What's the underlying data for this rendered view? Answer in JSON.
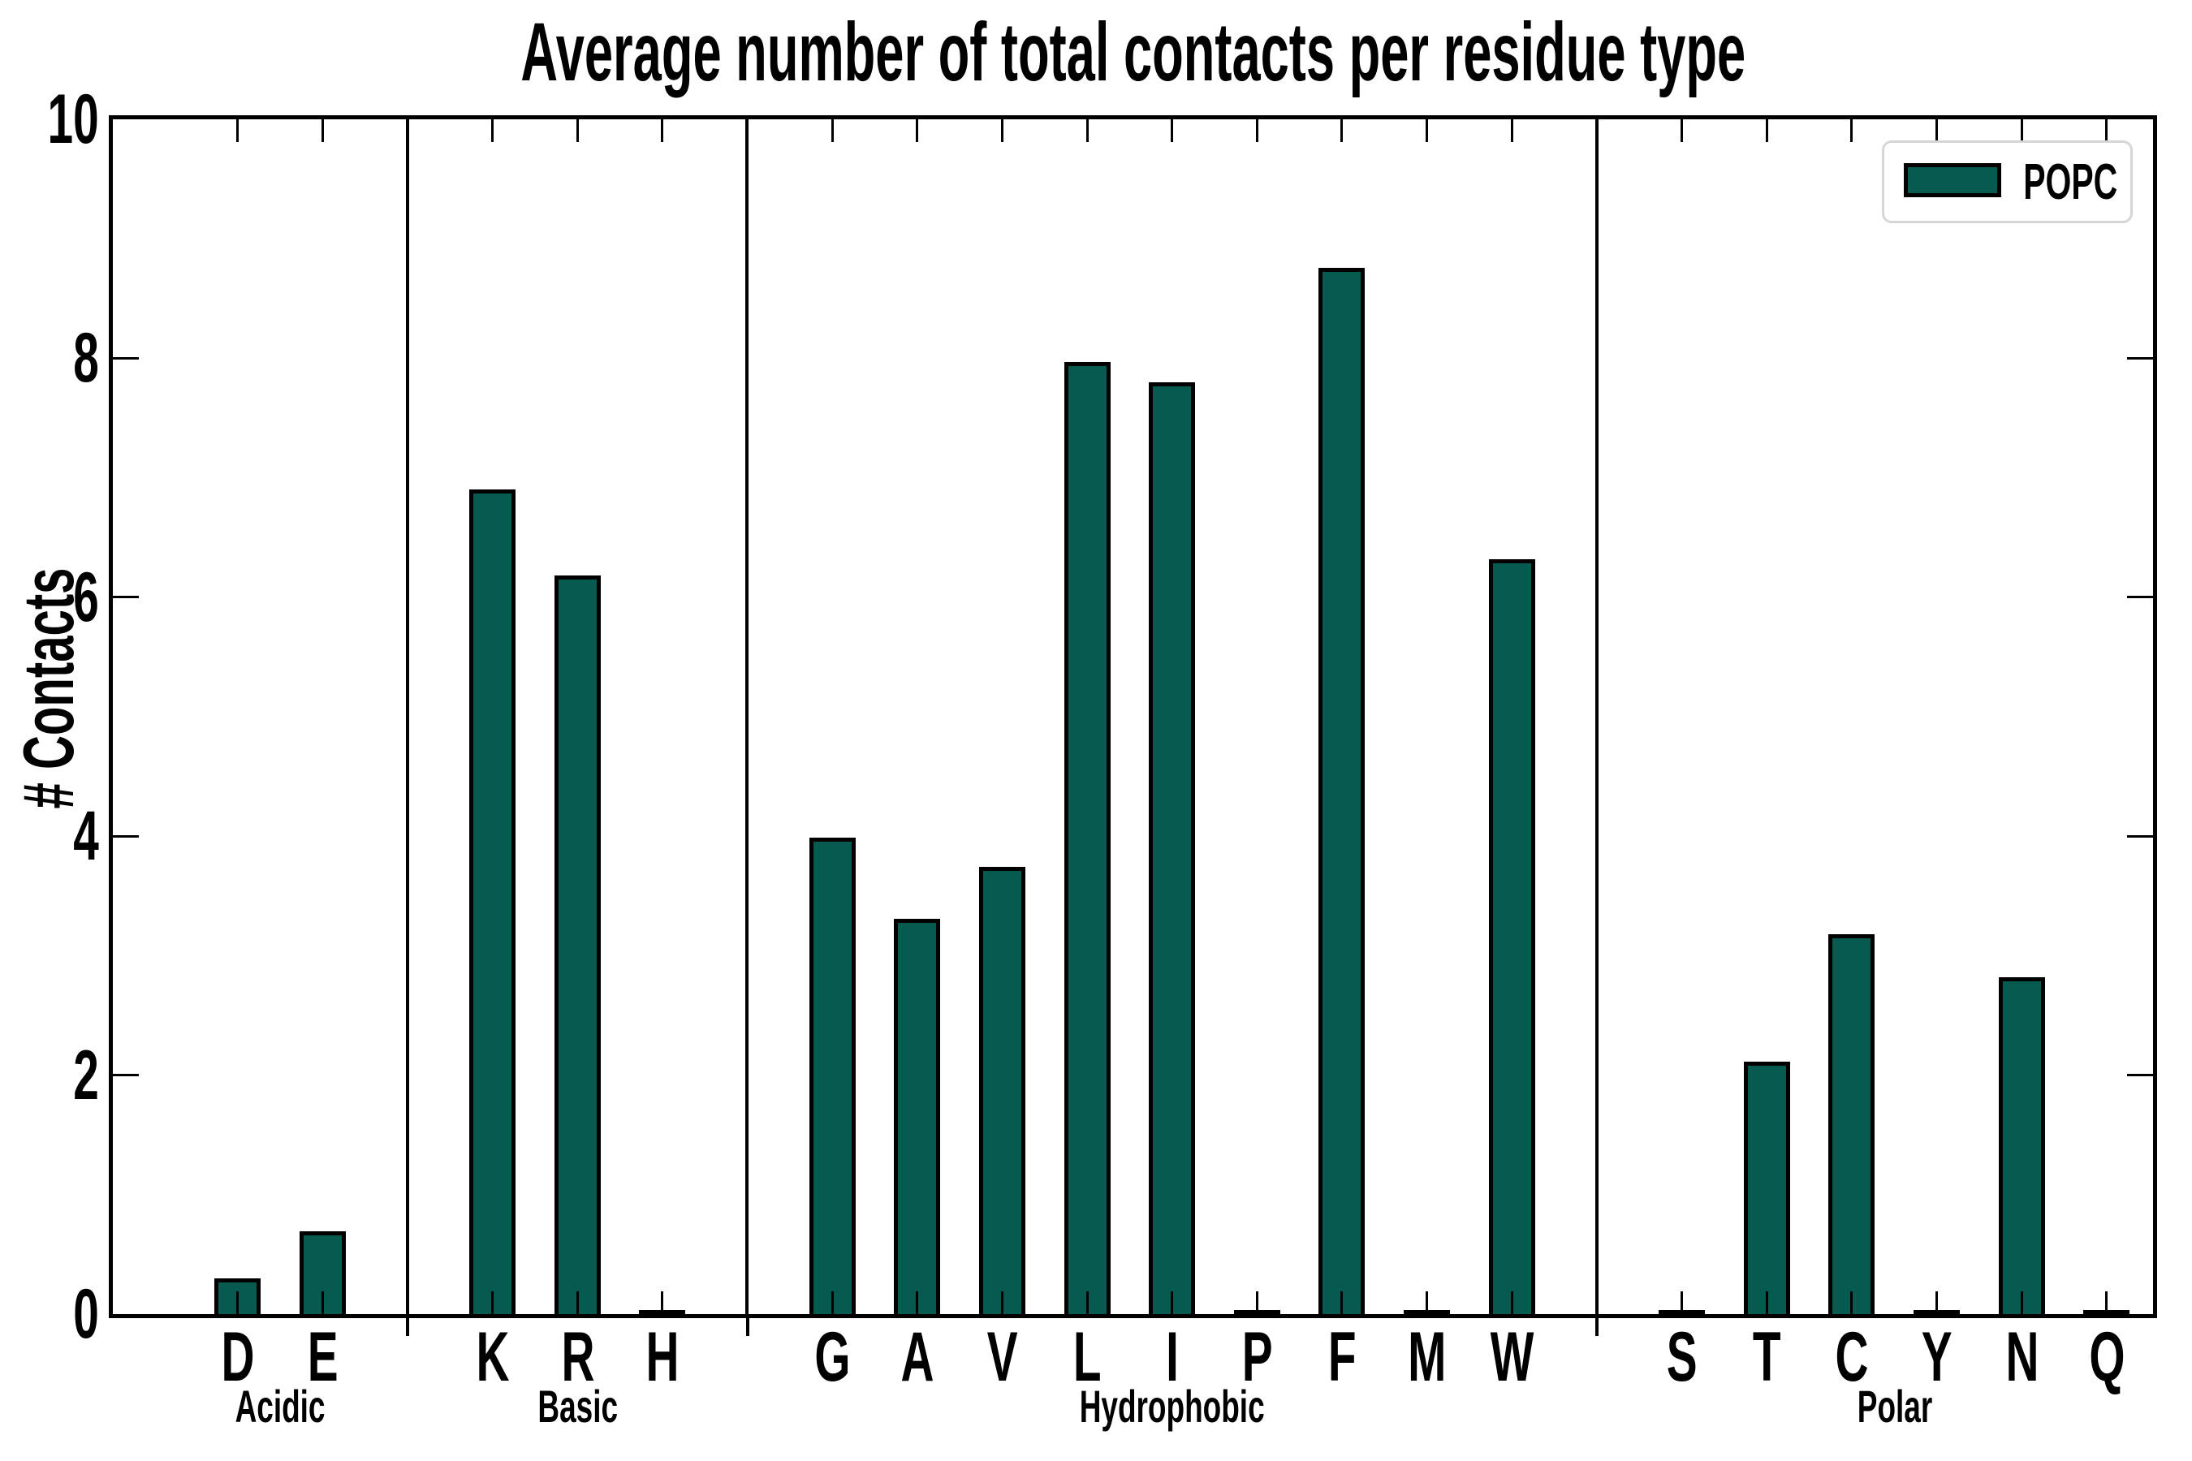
{
  "chart_data": {
    "type": "bar",
    "title": "Average number of total contacts per residue type",
    "xlabel": "",
    "ylabel": "# Contacts",
    "ylim": [
      0,
      10
    ],
    "yticks": [
      0,
      2,
      4,
      6,
      8,
      10
    ],
    "grid": false,
    "legend_position": "upper right",
    "legend": [
      {
        "label": "POPC",
        "color": "#075a50"
      }
    ],
    "bar_color": "#075a50",
    "bar_edge_color": "#000000",
    "groups": [
      {
        "label": "Acidic",
        "categories": [
          "D",
          "E"
        ],
        "values": [
          0.3,
          0.69
        ]
      },
      {
        "label": "Basic",
        "categories": [
          "K",
          "R",
          "H"
        ],
        "values": [
          6.9,
          6.18,
          0.02
        ]
      },
      {
        "label": "Hydrophobic",
        "categories": [
          "G",
          "A",
          "V",
          "L",
          "I",
          "P",
          "F",
          "M",
          "W"
        ],
        "values": [
          3.99,
          3.31,
          3.74,
          7.97,
          7.8,
          0.02,
          8.76,
          0.02,
          6.32
        ]
      },
      {
        "label": "Polar",
        "categories": [
          "S",
          "T",
          "C",
          "Y",
          "N",
          "Q"
        ],
        "values": [
          0.02,
          2.11,
          3.18,
          0.02,
          2.82,
          0.02
        ]
      }
    ]
  }
}
